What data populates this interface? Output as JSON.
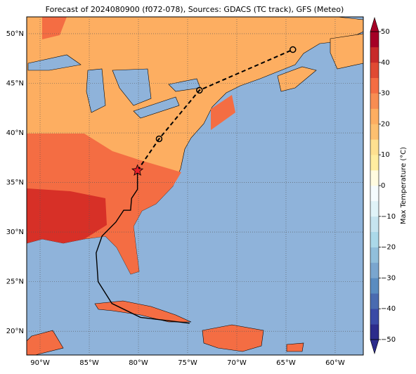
{
  "chart_data": {
    "type": "map",
    "title": "Forecast of 2024080900 (f072-078), Sources: GDACS (TC track), GFS (Meteo)",
    "xlim": [
      -91.36,
      -57.14
    ],
    "ylim": [
      17.6,
      51.7
    ],
    "xticks": [
      {
        "value": -90,
        "label": "90°W"
      },
      {
        "value": -85,
        "label": "85°W"
      },
      {
        "value": -80,
        "label": "80°W"
      },
      {
        "value": -75,
        "label": "75°W"
      },
      {
        "value": -70,
        "label": "70°W"
      },
      {
        "value": -65,
        "label": "65°W"
      },
      {
        "value": -60,
        "label": "60°W"
      }
    ],
    "yticks": [
      {
        "value": 20,
        "label": "20°N"
      },
      {
        "value": 25,
        "label": "25°N"
      },
      {
        "value": 30,
        "label": "30°N"
      },
      {
        "value": 35,
        "label": "35°N"
      },
      {
        "value": 40,
        "label": "40°N"
      },
      {
        "value": 45,
        "label": "45°N"
      },
      {
        "value": 50,
        "label": "50°N"
      }
    ],
    "grid": true,
    "track": {
      "past": {
        "lon": [
          -74.8,
          -79.8,
          -82.7,
          -84.1,
          -84.3,
          -83.7,
          -82.3,
          -81.5,
          -80.8,
          -80.7,
          -80.1,
          -80.1
        ],
        "lat": [
          20.8,
          21.4,
          22.8,
          25.0,
          27.9,
          29.6,
          31.0,
          32.2,
          32.2,
          33.4,
          34.3,
          36.2
        ]
      },
      "forecast": {
        "lon": [
          -80.1,
          -77.9,
          -73.8,
          -64.3
        ],
        "lat": [
          36.2,
          39.4,
          44.3,
          48.4
        ]
      }
    },
    "colorbar": {
      "label": "Max Temperature (°C)",
      "clim": [
        -50,
        50
      ],
      "ticks": [
        {
          "value": -50,
          "label": "−50"
        },
        {
          "value": -40,
          "label": "−40"
        },
        {
          "value": -30,
          "label": "−30"
        },
        {
          "value": -20,
          "label": "−20"
        },
        {
          "value": -10,
          "label": "−10"
        },
        0,
        10,
        20,
        30,
        40,
        50
      ],
      "colors": [
        "#2c2c8c",
        "#3a4aa6",
        "#4a6bb0",
        "#5a8cc0",
        "#7aa6cf",
        "#91bfdb",
        "#abd9e9",
        "#c6e4ef",
        "#e0f3f8",
        "#f5fbfd",
        "#fffbe0",
        "#ffeda0",
        "#fee090",
        "#fdc070",
        "#fdae61",
        "#f88d52",
        "#f46d43",
        "#e04a33",
        "#c72a2a",
        "#a50026"
      ]
    }
  }
}
